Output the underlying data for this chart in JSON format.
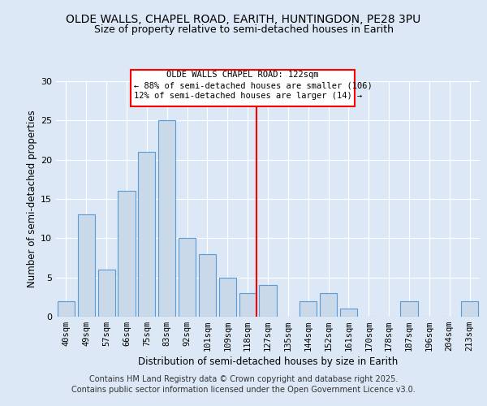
{
  "title1": "OLDE WALLS, CHAPEL ROAD, EARITH, HUNTINGDON, PE28 3PU",
  "title2": "Size of property relative to semi-detached houses in Earith",
  "xlabel": "Distribution of semi-detached houses by size in Earith",
  "ylabel": "Number of semi-detached properties",
  "categories": [
    "40sqm",
    "49sqm",
    "57sqm",
    "66sqm",
    "75sqm",
    "83sqm",
    "92sqm",
    "101sqm",
    "109sqm",
    "118sqm",
    "127sqm",
    "135sqm",
    "144sqm",
    "152sqm",
    "161sqm",
    "170sqm",
    "178sqm",
    "187sqm",
    "196sqm",
    "204sqm",
    "213sqm"
  ],
  "values": [
    2,
    13,
    6,
    16,
    21,
    25,
    10,
    8,
    5,
    3,
    4,
    0,
    2,
    3,
    1,
    0,
    0,
    2,
    0,
    0,
    2
  ],
  "bar_color": "#c9d9ea",
  "bar_edge_color": "#5b9bd5",
  "reference_label": "OLDE WALLS CHAPEL ROAD: 122sqm",
  "annotation_line1": "← 88% of semi-detached houses are smaller (106)",
  "annotation_line2": "12% of semi-detached houses are larger (14) →",
  "ylim": [
    0,
    30
  ],
  "background_color": "#dce8f5",
  "plot_bg_color": "#dce8f5",
  "footer1": "Contains HM Land Registry data © Crown copyright and database right 2025.",
  "footer2": "Contains public sector information licensed under the Open Government Licence v3.0.",
  "title_fontsize": 10,
  "subtitle_fontsize": 9,
  "footer_fontsize": 7
}
